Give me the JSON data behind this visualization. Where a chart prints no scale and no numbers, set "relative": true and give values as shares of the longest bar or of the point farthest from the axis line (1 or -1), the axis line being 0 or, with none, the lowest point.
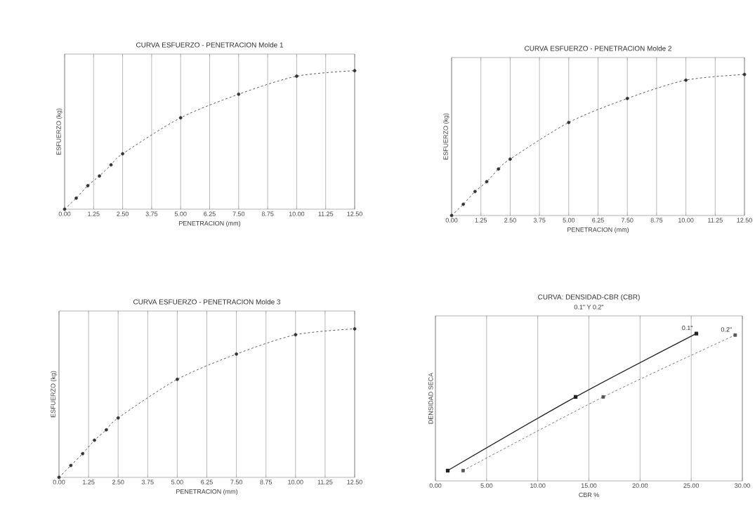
{
  "chart_data": [
    {
      "type": "line",
      "title": "CURVA ESFUERZO - PENETRACION Molde 1",
      "xlabel": "PENETRACION (mm)",
      "ylabel": "ESFUERZO (kg)",
      "relative": true,
      "grid": true,
      "marker": "circle",
      "line_style": "dashed",
      "color": "#333333",
      "xlim": [
        0,
        12.5
      ],
      "xticks": [
        {
          "value": 0,
          "label": "0.00"
        },
        {
          "value": 1.25,
          "label": "1.25"
        },
        {
          "value": 2.5,
          "label": "2.50"
        },
        {
          "value": 3.75,
          "label": "3.75"
        },
        {
          "value": 5,
          "label": "5.00"
        },
        {
          "value": 6.25,
          "label": "6.25"
        },
        {
          "value": 7.5,
          "label": "7.50"
        },
        {
          "value": 8.75,
          "label": "8.75"
        },
        {
          "value": 10,
          "label": "10.00"
        },
        {
          "value": 11.25,
          "label": "11.25"
        },
        {
          "value": 12.5,
          "label": "12.50"
        }
      ],
      "x": [
        0,
        0.5,
        1.0,
        1.5,
        2.0,
        2.5,
        5.0,
        7.5,
        10.0,
        12.5
      ],
      "values": [
        0,
        0.08,
        0.17,
        0.24,
        0.32,
        0.4,
        0.66,
        0.83,
        0.96,
        1
      ]
    },
    {
      "type": "line",
      "title": "CURVA ESFUERZO - PENETRACION Molde 2",
      "xlabel": "PENETRACION (mm)",
      "ylabel": "ESFUERZO (kg)",
      "relative": true,
      "grid": true,
      "marker": "circle",
      "line_style": "dashed",
      "color": "#333333",
      "xlim": [
        0,
        12.5
      ],
      "xticks": [
        {
          "value": 0,
          "label": "0.00"
        },
        {
          "value": 1.25,
          "label": "1.25"
        },
        {
          "value": 2.5,
          "label": "2.50"
        },
        {
          "value": 3.75,
          "label": "3.75"
        },
        {
          "value": 5,
          "label": "5.00"
        },
        {
          "value": 6.25,
          "label": "6.25"
        },
        {
          "value": 7.5,
          "label": "7.50"
        },
        {
          "value": 8.75,
          "label": "8.75"
        },
        {
          "value": 10,
          "label": "10.00"
        },
        {
          "value": 11.25,
          "label": "11.25"
        },
        {
          "value": 12.5,
          "label": "12.50"
        }
      ],
      "x": [
        0,
        0.5,
        1.0,
        1.5,
        2.0,
        2.5,
        5.0,
        7.5,
        10.0,
        12.5
      ],
      "values": [
        0,
        0.08,
        0.17,
        0.24,
        0.33,
        0.4,
        0.66,
        0.83,
        0.96,
        1
      ]
    },
    {
      "type": "line",
      "title": "CURVA ESFUERZO - PENETRACION Molde 3",
      "xlabel": "PENETRACION (mm)",
      "ylabel": "ESFUERZO (kg)",
      "relative": true,
      "grid": true,
      "marker": "circle",
      "line_style": "dashed",
      "color": "#333333",
      "xlim": [
        0,
        12.5
      ],
      "xticks": [
        {
          "value": 0,
          "label": "0.00"
        },
        {
          "value": 1.25,
          "label": "1.25"
        },
        {
          "value": 2.5,
          "label": "2.50"
        },
        {
          "value": 3.75,
          "label": "3.75"
        },
        {
          "value": 5,
          "label": "5.00"
        },
        {
          "value": 6.25,
          "label": "6.25"
        },
        {
          "value": 7.5,
          "label": "7.50"
        },
        {
          "value": 8.75,
          "label": "8.75"
        },
        {
          "value": 10,
          "label": "10.00"
        },
        {
          "value": 11.25,
          "label": "11.25"
        },
        {
          "value": 12.5,
          "label": "12.50"
        }
      ],
      "x": [
        0,
        0.5,
        1.0,
        1.5,
        2.0,
        2.5,
        5.0,
        7.5,
        10.0,
        12.5
      ],
      "values": [
        0,
        0.08,
        0.16,
        0.25,
        0.32,
        0.4,
        0.66,
        0.83,
        0.96,
        1
      ]
    },
    {
      "type": "line",
      "title": "CURVA: DENSIDAD-CBR (CBR)",
      "subtitle": "0.1\" Y 0.2\"",
      "xlabel": "CBR %",
      "ylabel": "DENSIDAD SECA",
      "relative": true,
      "grid": true,
      "marker": "square",
      "xlim": [
        0,
        30
      ],
      "xticks": [
        {
          "value": 0,
          "label": "0.00"
        },
        {
          "value": 5,
          "label": "5.00"
        },
        {
          "value": 10,
          "label": "10.00"
        },
        {
          "value": 15,
          "label": "15.00"
        },
        {
          "value": 20,
          "label": "20.00"
        },
        {
          "value": 25,
          "label": "25.00"
        },
        {
          "value": 30,
          "label": "30.00"
        }
      ],
      "series": [
        {
          "name": "0.1\"",
          "color": "#222222",
          "line_style": "solid",
          "x": [
            1.2,
            13.7,
            25.5
          ],
          "values": [
            0.07,
            0.57,
            1
          ]
        },
        {
          "name": "0.2\"",
          "color": "#555555",
          "line_style": "dashed",
          "x": [
            2.7,
            16.4,
            29.3
          ],
          "values": [
            0.07,
            0.57,
            0.99
          ]
        }
      ]
    }
  ]
}
